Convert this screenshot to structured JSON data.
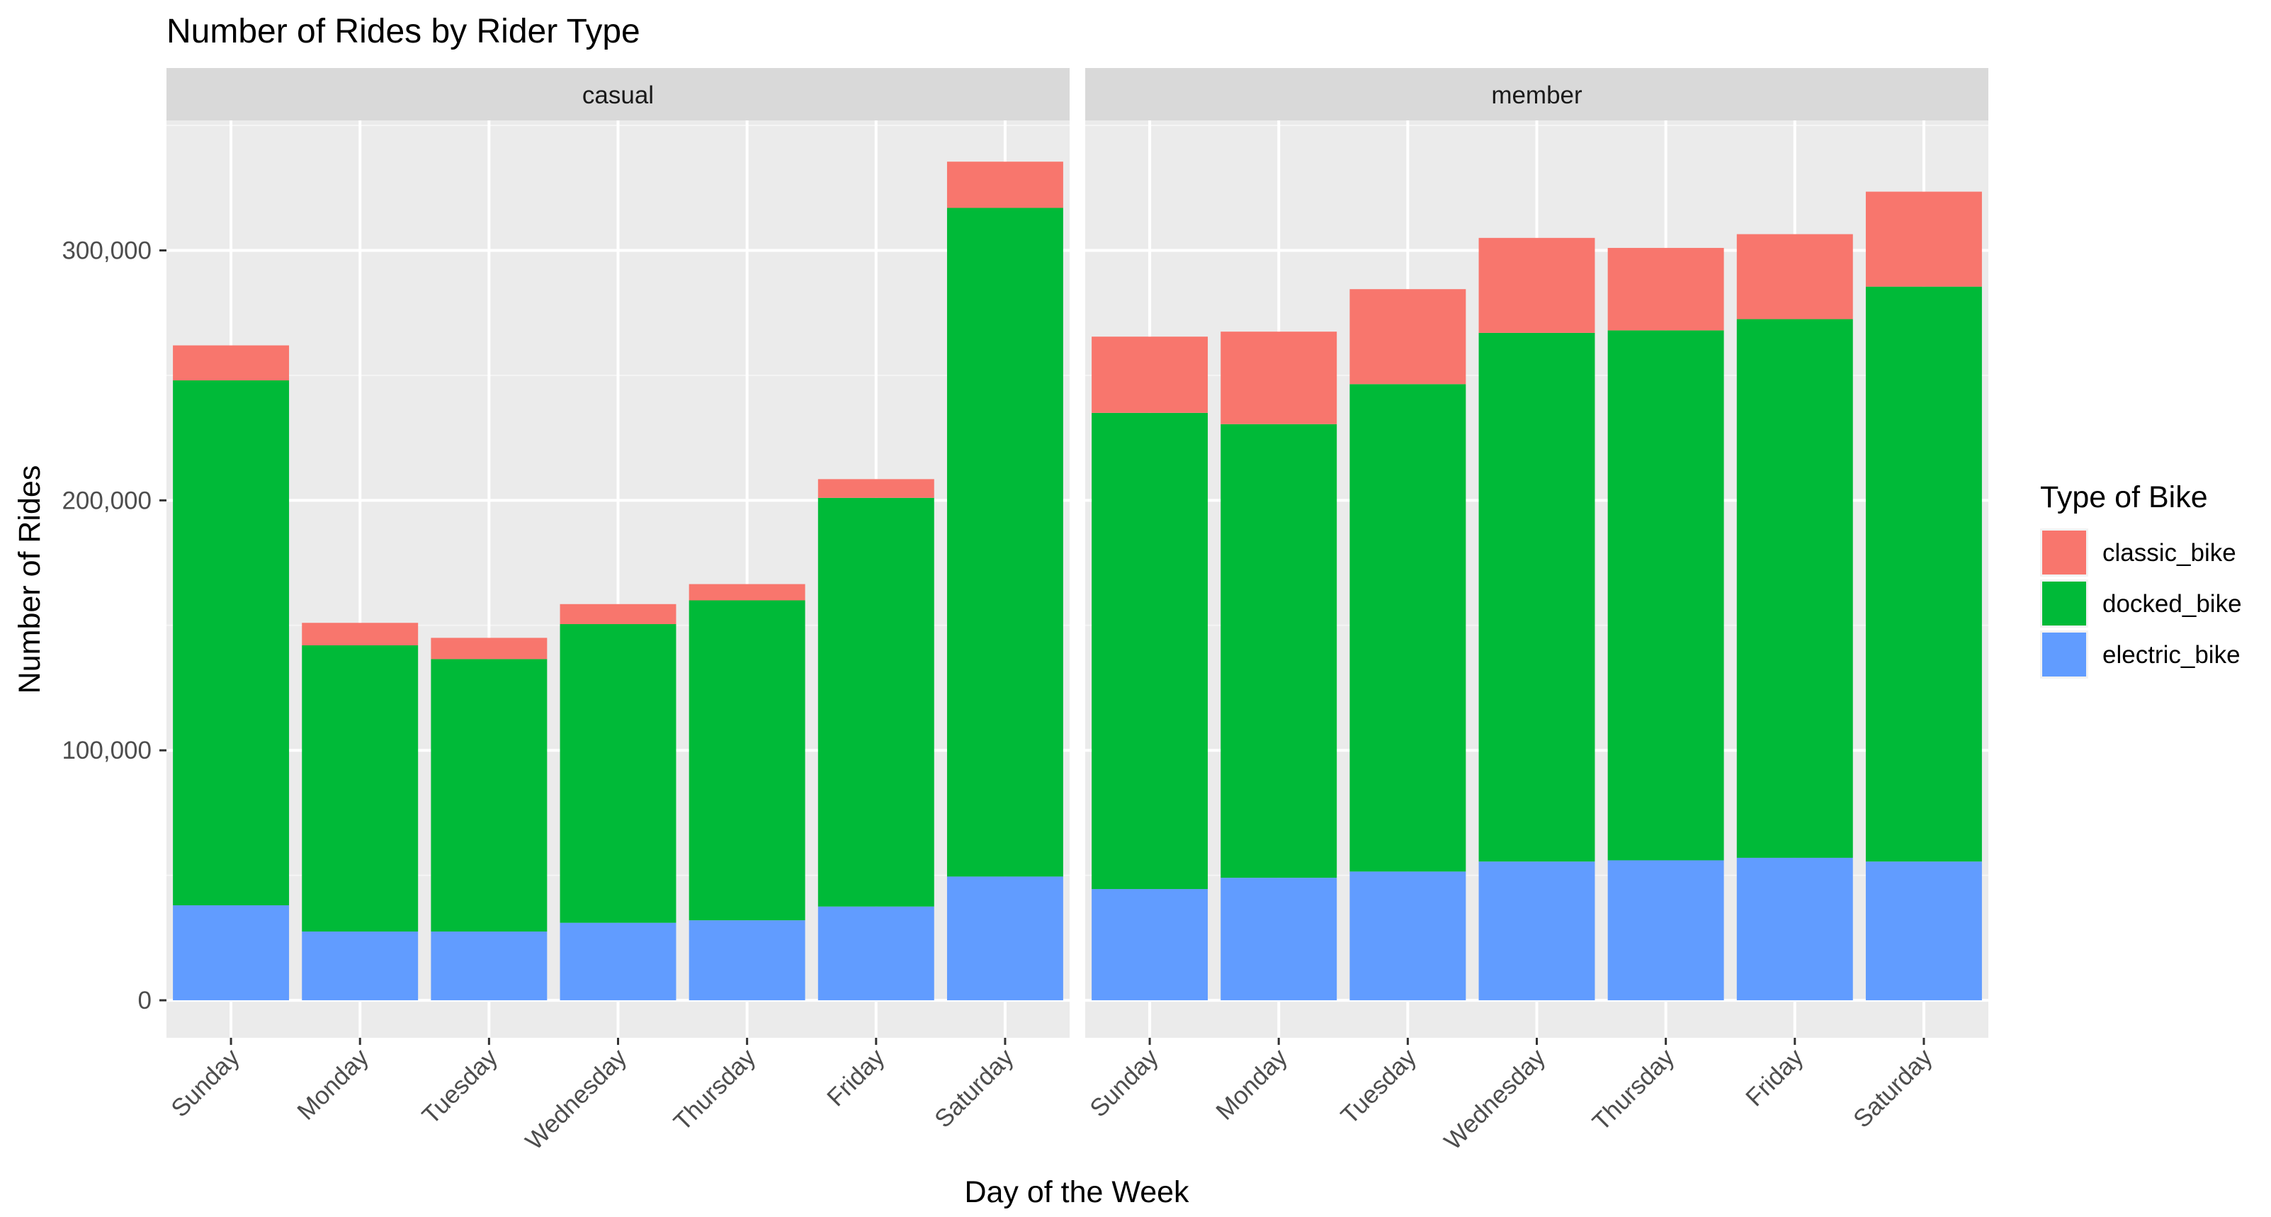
{
  "chart_data": {
    "type": "bar",
    "stacked": true,
    "title": "Number of Rides by Rider Type",
    "xlabel": "Day of the Week",
    "ylabel": "Number of Rides",
    "ylim": [
      -15000,
      352000
    ],
    "yticks": [
      0,
      100000,
      200000,
      300000
    ],
    "ytick_labels": [
      "0",
      "100,000",
      "200,000",
      "300,000"
    ],
    "grid": true,
    "legend": {
      "title": "Type of Bike",
      "position": "right"
    },
    "categories": [
      "Sunday",
      "Monday",
      "Tuesday",
      "Wednesday",
      "Thursday",
      "Friday",
      "Saturday"
    ],
    "stack_order": [
      "electric_bike",
      "docked_bike",
      "classic_bike"
    ],
    "legend_order": [
      "classic_bike",
      "docked_bike",
      "electric_bike"
    ],
    "colors": {
      "classic_bike": "#F8766D",
      "docked_bike": "#00BA38",
      "electric_bike": "#619CFF"
    },
    "panels": [
      {
        "name": "casual",
        "series": [
          {
            "name": "electric_bike",
            "values": [
              38000,
              27500,
              27500,
              31000,
              32000,
              37500,
              49500
            ]
          },
          {
            "name": "docked_bike",
            "values": [
              210000,
              114500,
              109000,
              119500,
              128000,
              163500,
              267500
            ]
          },
          {
            "name": "classic_bike",
            "values": [
              14000,
              9000,
              8500,
              8000,
              6500,
              7500,
              18500
            ]
          }
        ]
      },
      {
        "name": "member",
        "series": [
          {
            "name": "electric_bike",
            "values": [
              44500,
              49000,
              51500,
              55500,
              56000,
              57000,
              55500
            ]
          },
          {
            "name": "docked_bike",
            "values": [
              190500,
              181500,
              195000,
              211500,
              212000,
              215500,
              230000
            ]
          },
          {
            "name": "classic_bike",
            "values": [
              30500,
              37000,
              38000,
              38000,
              33000,
              34000,
              38000
            ]
          }
        ]
      }
    ]
  }
}
